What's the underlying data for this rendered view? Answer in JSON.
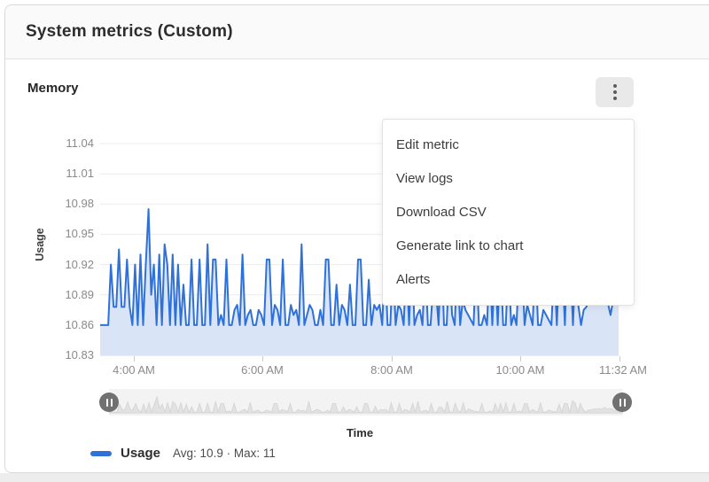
{
  "page": {
    "title": "System metrics (Custom)"
  },
  "panel": {
    "title": "Memory",
    "menu_button": {
      "icon": "kebab-vertical-icon"
    },
    "menu": {
      "items": [
        "Edit metric",
        "View logs",
        "Download CSV",
        "Generate link to chart",
        "Alerts"
      ]
    },
    "legend": {
      "label": "Usage",
      "stats": "Avg: 10.9 · Max: 11"
    }
  },
  "colors": {
    "line": "#2f71d8",
    "area_fill": "#d9e5f7",
    "grid": "#ececec",
    "axis_line": "#dadada",
    "mini_fill": "#e2e2e2",
    "mini_stroke": "#d6d6d6",
    "header_bg": "#fafafa",
    "kebab_bg": "#e9e9e9",
    "handle": "#717171"
  },
  "chart_data": {
    "type": "area",
    "title": "Memory",
    "xlabel": "Time",
    "ylabel": "Usage",
    "x_tick_labels": [
      "4:00 AM",
      "6:00 AM",
      "8:00 AM",
      "10:00 AM",
      "11:32 AM"
    ],
    "y_tick_labels": [
      "11.04",
      "11.01",
      "10.98",
      "10.95",
      "10.92",
      "10.89",
      "10.86",
      "10.83"
    ],
    "y_ticks": [
      10.83,
      10.86,
      10.89,
      10.92,
      10.95,
      10.98,
      11.01,
      11.04
    ],
    "ylim": [
      10.83,
      11.05
    ],
    "x_range": [
      "3:29 AM",
      "11:32 AM"
    ],
    "grid": true,
    "legend_position": "bottom-left",
    "series": [
      {
        "name": "Usage",
        "avg": 10.9,
        "max": 11,
        "values": [
          10.86,
          10.86,
          10.86,
          10.86,
          10.92,
          10.878,
          10.878,
          10.935,
          10.878,
          10.878,
          10.925,
          10.878,
          10.86,
          10.92,
          10.86,
          10.93,
          10.86,
          10.92,
          10.975,
          10.89,
          10.92,
          10.86,
          10.93,
          10.86,
          10.94,
          10.92,
          10.86,
          10.93,
          10.86,
          10.92,
          10.86,
          10.9,
          10.86,
          10.86,
          10.925,
          10.86,
          10.86,
          10.925,
          10.86,
          10.86,
          10.94,
          10.86,
          10.925,
          10.925,
          10.86,
          10.87,
          10.86,
          10.925,
          10.86,
          10.86,
          10.875,
          10.88,
          10.86,
          10.93,
          10.86,
          10.87,
          10.875,
          10.86,
          10.86,
          10.875,
          10.87,
          10.86,
          10.925,
          10.925,
          10.86,
          10.88,
          10.875,
          10.86,
          10.925,
          10.86,
          10.86,
          10.88,
          10.87,
          10.875,
          10.86,
          10.94,
          10.86,
          10.87,
          10.88,
          10.875,
          10.86,
          10.86,
          10.875,
          10.86,
          10.925,
          10.925,
          10.86,
          10.86,
          10.9,
          10.86,
          10.88,
          10.875,
          10.86,
          10.9,
          10.86,
          10.86,
          10.925,
          10.925,
          10.86,
          10.86,
          10.905,
          10.86,
          10.88,
          10.875,
          10.88,
          10.86,
          10.93,
          10.86,
          10.86,
          10.925,
          10.86,
          10.88,
          10.875,
          10.86,
          10.925,
          10.86,
          10.94,
          10.86,
          10.87,
          10.875,
          10.86,
          10.925,
          10.86,
          10.86,
          10.9,
          10.895,
          10.86,
          10.94,
          10.86,
          10.86,
          10.925,
          10.87,
          10.86,
          10.93,
          10.86,
          10.885,
          10.875,
          10.87,
          10.865,
          10.86,
          10.925,
          10.86,
          10.86,
          10.87,
          10.86,
          10.925,
          10.86,
          10.925,
          10.86,
          10.93,
          10.86,
          10.86,
          10.925,
          10.86,
          10.87,
          10.86,
          10.925,
          10.925,
          10.86,
          10.88,
          10.87,
          10.86,
          10.93,
          10.86,
          10.86,
          10.875,
          10.87,
          10.865,
          10.86,
          10.92,
          10.86,
          10.925,
          10.925,
          10.86,
          10.945,
          10.93,
          10.86,
          10.925,
          10.88,
          10.86,
          10.875,
          10.878,
          10.885,
          10.882,
          10.888,
          10.882,
          10.895,
          10.885,
          10.888,
          10.882,
          10.87,
          10.885,
          10.888,
          10.885
        ]
      }
    ]
  }
}
